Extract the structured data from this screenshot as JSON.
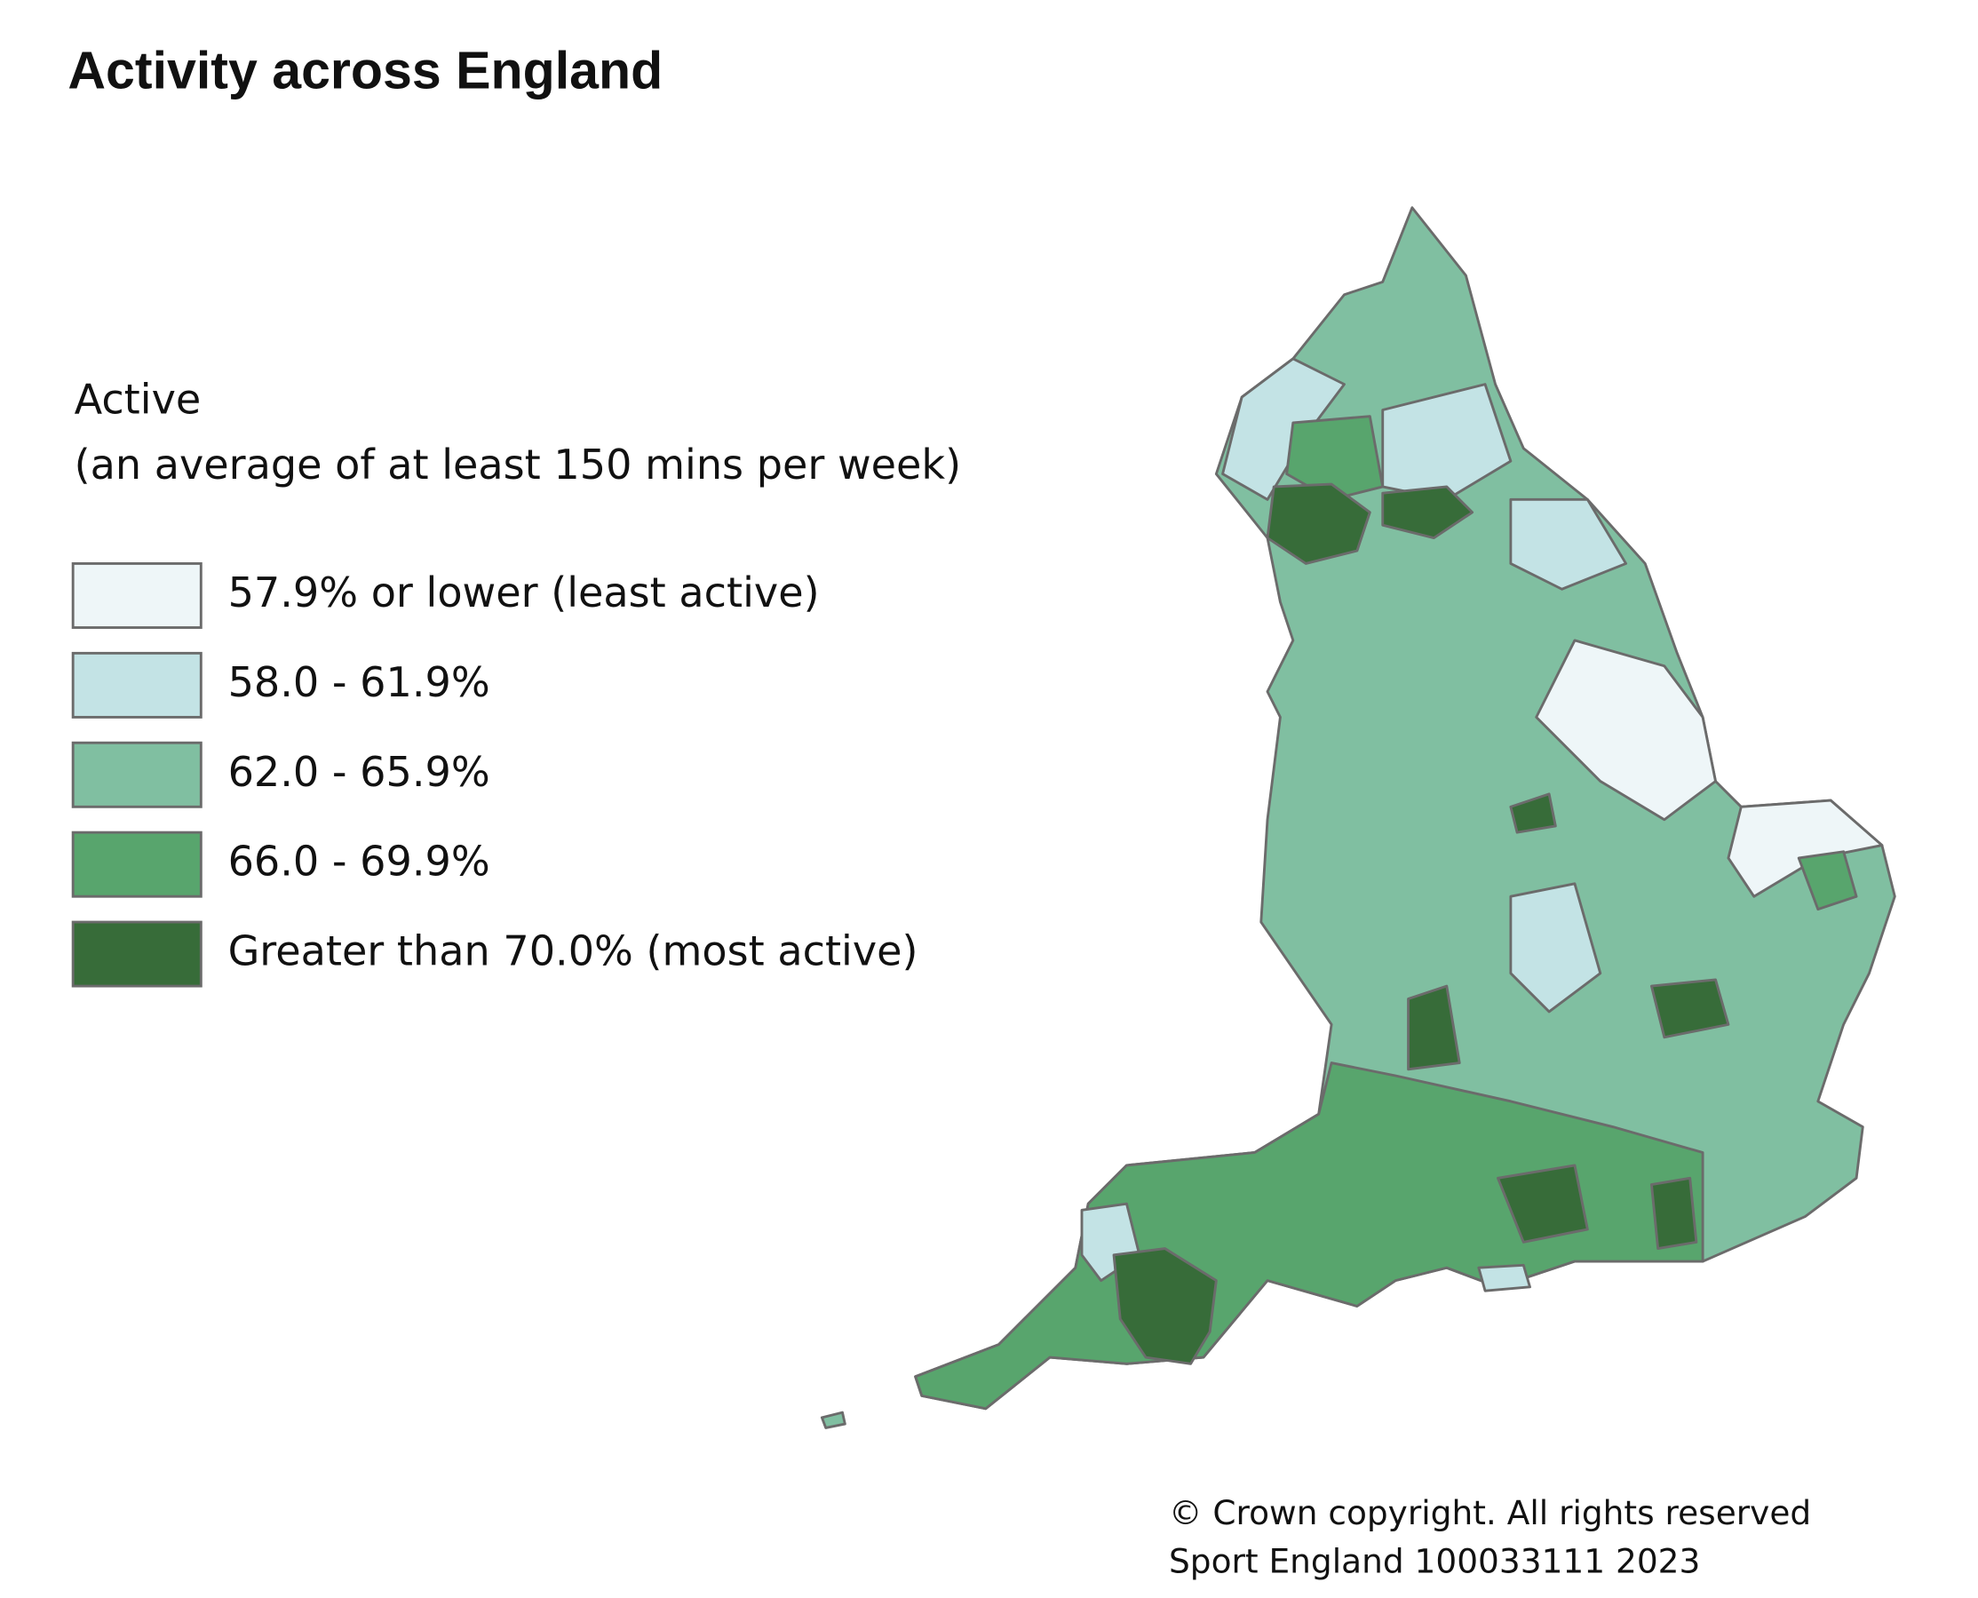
{
  "header": {
    "title": "Activity across England"
  },
  "legend": {
    "title": "Active",
    "subtitle": "(an average of at least 150 mins per week)",
    "items": [
      {
        "label": "57.9% or lower (least active)",
        "color": "#eef6f8"
      },
      {
        "label": "58.0 - 61.9%",
        "color": "#c3e3e5"
      },
      {
        "label": "62.0 - 65.9%",
        "color": "#80bfa1"
      },
      {
        "label": "66.0 - 69.9%",
        "color": "#58a56d"
      },
      {
        "label": "Greater than 70.0% (most active)",
        "color": "#376c39"
      }
    ]
  },
  "footer": {
    "lines": [
      "© Crown copyright. All rights reserved",
      "Sport England 100033111 2023"
    ]
  }
}
